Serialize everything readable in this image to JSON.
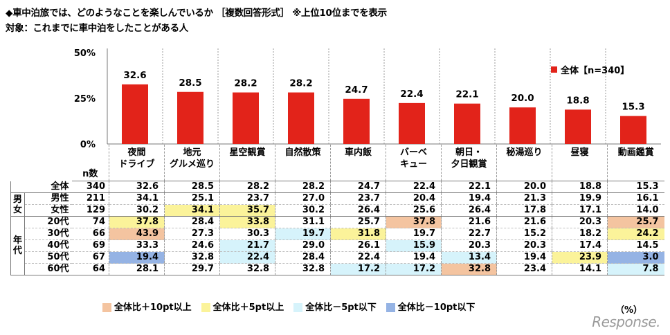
{
  "header": {
    "title": "◆車中泊旅では、どのようなことを楽しんでいるか ［複数回答形式］ ※上位10位までを表示",
    "subtitle": "対象：これまでに車中泊をしたことがある人"
  },
  "legend": {
    "label": "全体【n=340】"
  },
  "chart_data": {
    "type": "bar",
    "categories": [
      "夜間ドライブ",
      "地元グルメ巡り",
      "星空観賞",
      "自然散策",
      "車内飯",
      "バーベキュー",
      "朝日・夕日観賞",
      "秘湯巡り",
      "昼寝",
      "動画鑑賞"
    ],
    "series": [
      {
        "name": "全体【n=340】",
        "values": [
          32.6,
          28.5,
          28.2,
          28.2,
          24.7,
          22.4,
          22.1,
          20.0,
          18.8,
          15.3
        ]
      }
    ],
    "ylim": [
      0,
      50
    ],
    "yticks": [
      "50%",
      "25%",
      "0%"
    ],
    "ytick_values": [
      50,
      25,
      0
    ],
    "bar_color": "#e2231a",
    "value_labels": [
      "32.6",
      "28.5",
      "28.2",
      "28.2",
      "24.7",
      "22.4",
      "22.1",
      "20.0",
      "18.8",
      "15.3"
    ]
  },
  "table": {
    "category_lines": [
      [
        "夜間",
        "ドライブ"
      ],
      [
        "地元",
        "グルメ巡り"
      ],
      [
        "星空観賞"
      ],
      [
        "自然散策"
      ],
      [
        "車内飯"
      ],
      [
        "バーベ",
        "キュー"
      ],
      [
        "朝日・",
        "夕日観賞"
      ],
      [
        "秘湯巡り"
      ],
      [
        "昼寝"
      ],
      [
        "動画鑑賞"
      ]
    ],
    "n_header": "n数",
    "groups": {
      "gender": "男女",
      "age": "年代"
    },
    "rows": [
      {
        "label": "全体",
        "n": "340",
        "values": [
          "32.6",
          "28.5",
          "28.2",
          "28.2",
          "24.7",
          "22.4",
          "22.1",
          "20.0",
          "18.8",
          "15.3"
        ],
        "flags": [
          "",
          "",
          "",
          "",
          "",
          "",
          "",
          "",
          "",
          ""
        ]
      },
      {
        "label": "男性",
        "n": "211",
        "values": [
          "34.1",
          "25.1",
          "23.7",
          "27.0",
          "23.7",
          "20.4",
          "19.4",
          "21.3",
          "19.9",
          "16.1"
        ],
        "flags": [
          "",
          "",
          "",
          "",
          "",
          "",
          "",
          "",
          "",
          ""
        ]
      },
      {
        "label": "女性",
        "n": "129",
        "values": [
          "30.2",
          "34.1",
          "35.7",
          "30.2",
          "26.4",
          "25.6",
          "26.4",
          "17.8",
          "17.1",
          "14.0"
        ],
        "flags": [
          "",
          "yellow",
          "yellow",
          "",
          "",
          "",
          "",
          "",
          "",
          ""
        ]
      },
      {
        "label": "20代",
        "n": "74",
        "values": [
          "37.8",
          "28.4",
          "33.8",
          "31.1",
          "25.7",
          "37.8",
          "21.6",
          "21.6",
          "20.3",
          "25.7"
        ],
        "flags": [
          "yellow",
          "",
          "yellow",
          "",
          "",
          "orange",
          "",
          "",
          "",
          "orange"
        ]
      },
      {
        "label": "30代",
        "n": "66",
        "values": [
          "43.9",
          "27.3",
          "30.3",
          "19.7",
          "31.8",
          "19.7",
          "22.7",
          "15.2",
          "18.2",
          "24.2"
        ],
        "flags": [
          "orange",
          "",
          "",
          "cyan",
          "yellow",
          "",
          "",
          "",
          "",
          "yellow"
        ]
      },
      {
        "label": "40代",
        "n": "69",
        "values": [
          "33.3",
          "24.6",
          "21.7",
          "29.0",
          "26.1",
          "15.9",
          "20.3",
          "20.3",
          "17.4",
          "14.5"
        ],
        "flags": [
          "",
          "",
          "cyan",
          "",
          "",
          "cyan",
          "",
          "",
          "",
          ""
        ]
      },
      {
        "label": "50代",
        "n": "67",
        "values": [
          "19.4",
          "32.8",
          "22.4",
          "28.4",
          "22.4",
          "19.4",
          "13.4",
          "19.4",
          "23.9",
          "3.0"
        ],
        "flags": [
          "blue",
          "",
          "cyan",
          "",
          "",
          "",
          "cyan",
          "",
          "yellow",
          "blue"
        ]
      },
      {
        "label": "60代",
        "n": "64",
        "values": [
          "28.1",
          "29.7",
          "32.8",
          "32.8",
          "17.2",
          "17.2",
          "32.8",
          "23.4",
          "14.1",
          "7.8"
        ],
        "flags": [
          "",
          "",
          "",
          "",
          "cyan",
          "cyan",
          "orange",
          "",
          "",
          "cyan"
        ]
      }
    ]
  },
  "key": {
    "items": [
      {
        "label": "全体比＋10pt以上",
        "color": "#f4c4a0"
      },
      {
        "label": "全体比＋5pt以上",
        "color": "#fbf39a"
      },
      {
        "label": "全体比－5pt以下",
        "color": "#d6f3fb"
      },
      {
        "label": "全体比－10pt以下",
        "color": "#95b3e4"
      }
    ],
    "unit": "（%）"
  },
  "watermark": "Response."
}
